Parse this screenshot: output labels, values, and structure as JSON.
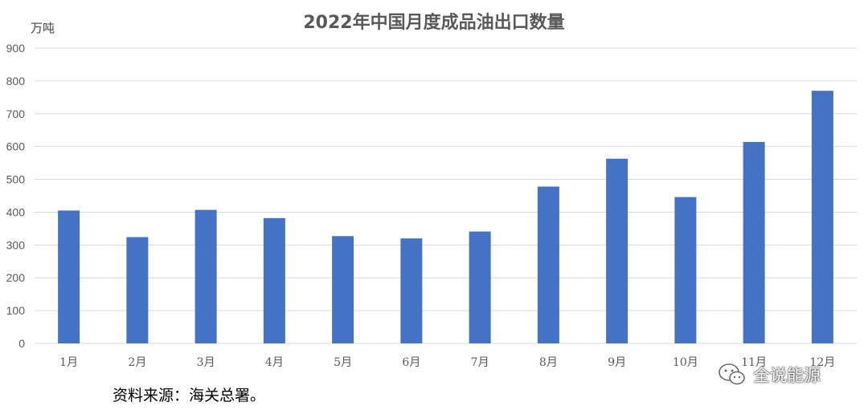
{
  "chart_data": {
    "type": "bar",
    "title": "2022年中国月度成品油出口数量",
    "ylabel": "万吨",
    "xlabel": "",
    "categories": [
      "1月",
      "2月",
      "3月",
      "4月",
      "5月",
      "6月",
      "7月",
      "8月",
      "9月",
      "10月",
      "11月",
      "12月"
    ],
    "values": [
      405,
      324,
      407,
      382,
      327,
      320,
      341,
      478,
      563,
      446,
      614,
      770
    ],
    "ylim": [
      0,
      900
    ],
    "yticks": [
      0,
      100,
      200,
      300,
      400,
      500,
      600,
      700,
      800,
      900
    ],
    "grid": true,
    "bar_color": "#4472C4",
    "grid_color": "#D9D9D9"
  },
  "source_note": "资料来源：海关总署。",
  "watermark": {
    "text": "全说能源",
    "icon": "wechat-icon"
  }
}
